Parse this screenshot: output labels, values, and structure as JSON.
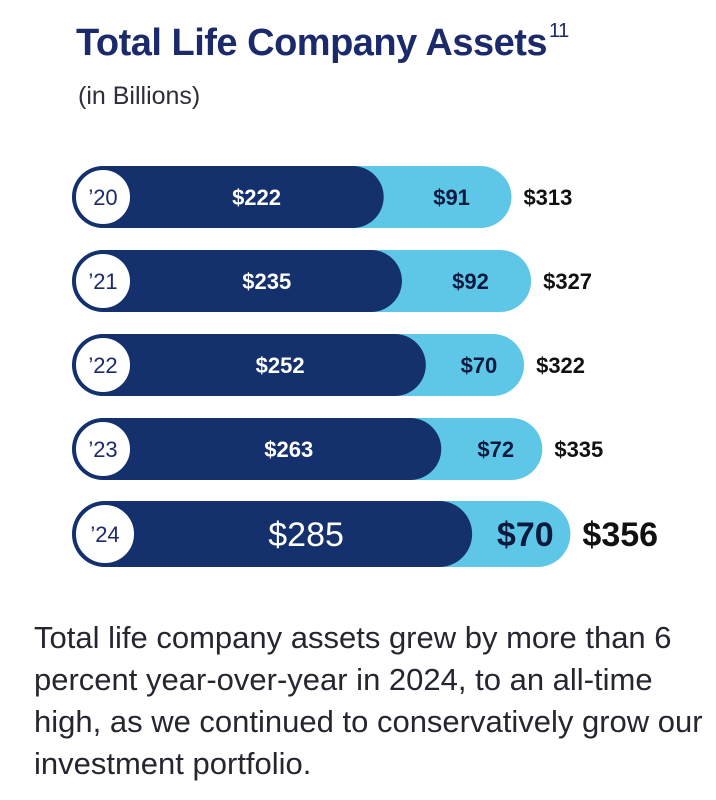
{
  "title": "Total Life Company Assets",
  "title_footnote": "11",
  "subtitle": "(in Billions)",
  "caption": "Total life company assets grew by more than 6 percent year-over-year in 2024, to an all-time high, as we continued to conservatively grow our investment portfolio.",
  "colors": {
    "dark_segment": "#14306d",
    "light_segment": "#5ec7e8",
    "title": "#1b2a6b",
    "year_circle_border": "#14306d",
    "total_text": "#111111"
  },
  "chart_data": {
    "type": "bar",
    "orientation": "horizontal",
    "stacked": true,
    "categories": [
      "’20",
      "’21",
      "’22",
      "’23",
      "’24"
    ],
    "series": [
      {
        "values": [
          222,
          235,
          252,
          263,
          285
        ],
        "labels": [
          "$222",
          "$235",
          "$252",
          "$263",
          "$285"
        ]
      },
      {
        "values": [
          91,
          92,
          70,
          72,
          70
        ],
        "labels": [
          "$91",
          "$92",
          "$70",
          "$72",
          "$70"
        ]
      }
    ],
    "totals": [
      313,
      327,
      322,
      335,
      356
    ],
    "total_labels": [
      "$313",
      "$327",
      "$322",
      "$335",
      "$356"
    ],
    "highlight_category": "’24"
  }
}
